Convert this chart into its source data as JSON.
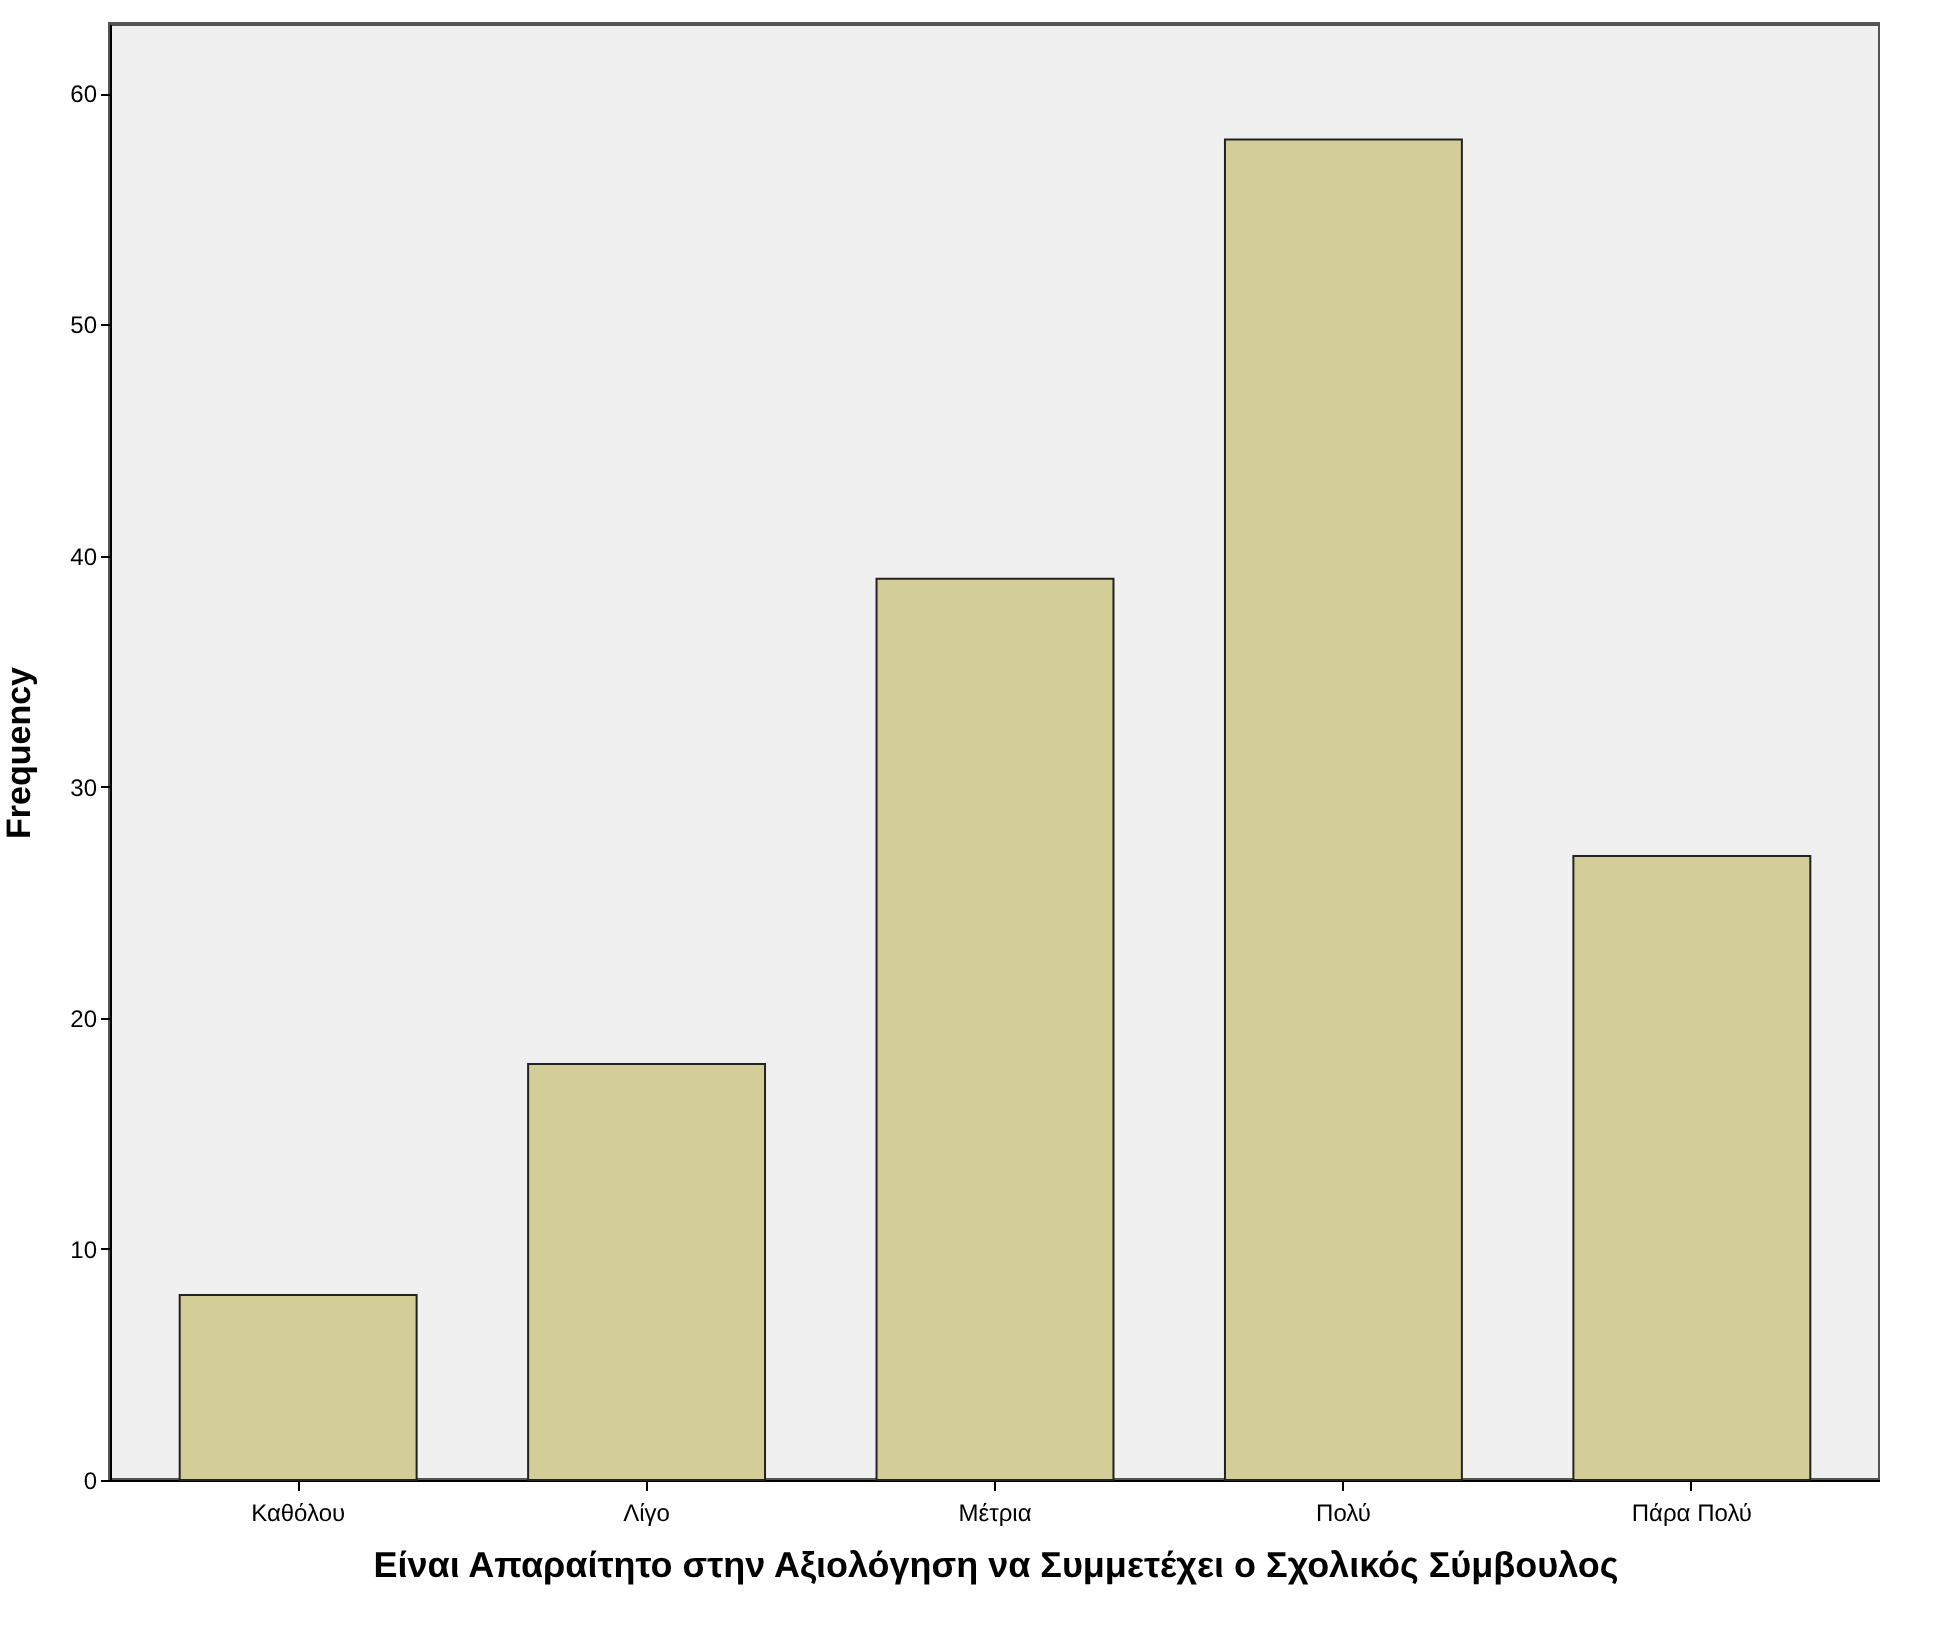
{
  "chart_data": {
    "type": "bar",
    "xlabel": "Είναι Απαραίτητο στην Αξιολόγηση να Συμμετέχει ο Σχολικός Σύμβουλος",
    "ylabel": "Frequency",
    "categories": [
      "Καθόλου",
      "Λίγο",
      "Μέτρια",
      "Πολύ",
      "Πάρα Πολύ"
    ],
    "values": [
      8,
      18,
      39,
      58,
      27
    ],
    "color": "#d3ce97",
    "ylim": [
      0,
      63
    ],
    "yticks": [
      0,
      10,
      20,
      30,
      40,
      50,
      60
    ],
    "grid": false
  }
}
